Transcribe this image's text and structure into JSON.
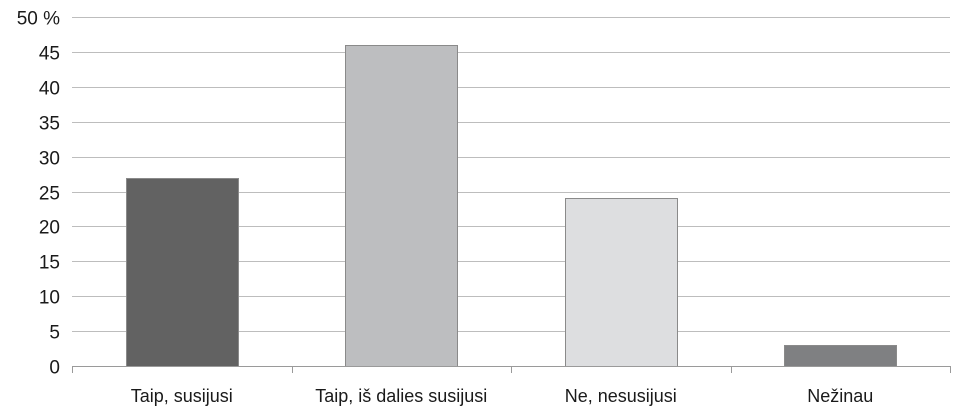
{
  "chart_data": {
    "type": "bar",
    "title": "",
    "xlabel": "",
    "ylabel": "",
    "categories": [
      "Taip, susijusi",
      "Taip, iš dalies susijusi",
      "Ne, nesusijusi",
      "Nežinau"
    ],
    "values": [
      27,
      46,
      24,
      3
    ],
    "ylim": [
      0,
      50
    ],
    "yticks": [
      "0",
      "5",
      "10",
      "15",
      "20",
      "25",
      "30",
      "35",
      "40",
      "45",
      "50 %"
    ],
    "grid": true,
    "legend": "none",
    "bar_colors": [
      "#626262",
      "#bdbec0",
      "#dddee0",
      "#7f8082"
    ]
  }
}
